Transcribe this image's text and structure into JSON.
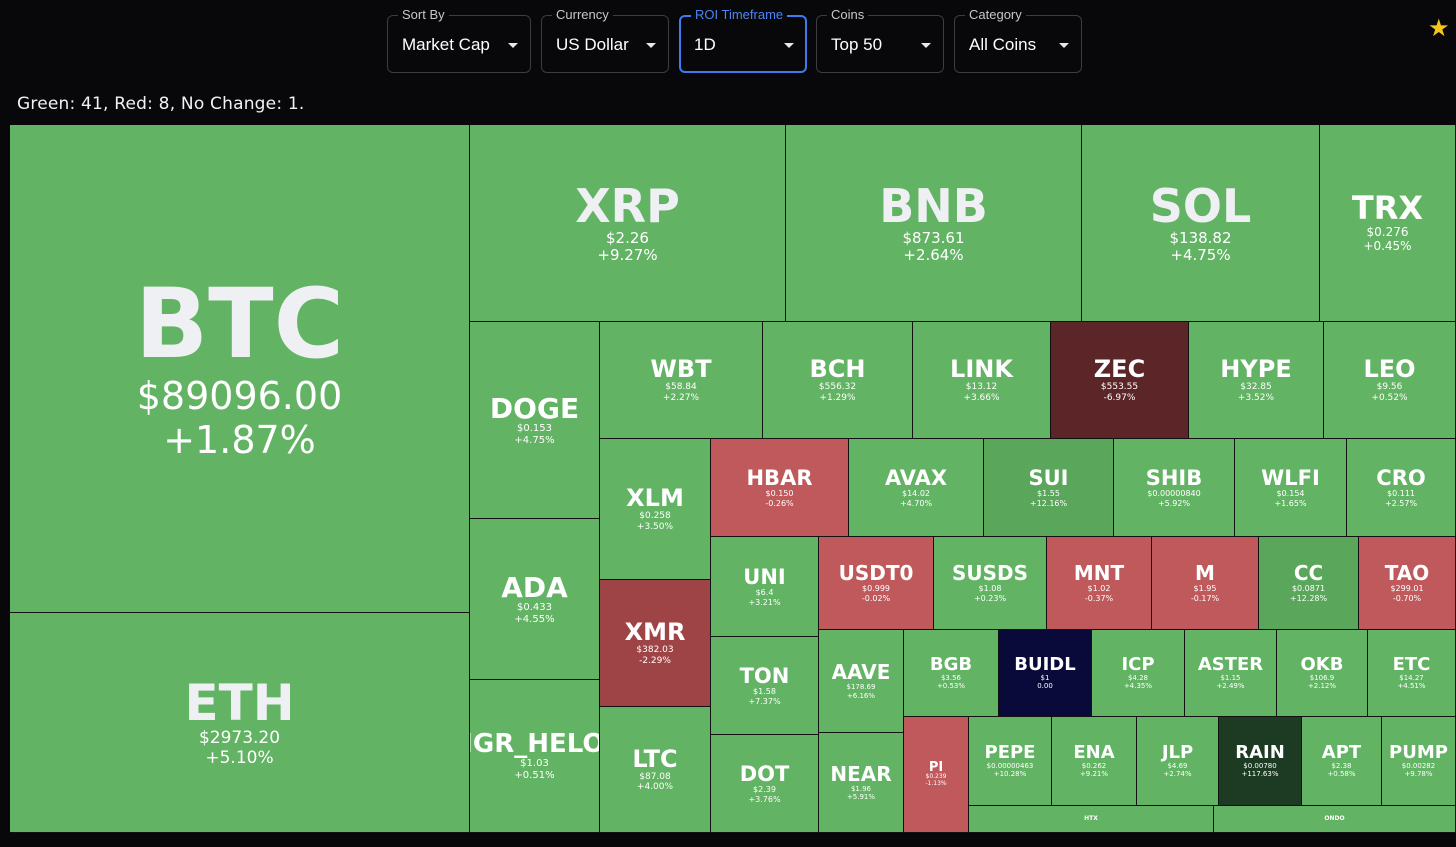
{
  "filters": {
    "sort_by": {
      "label": "Sort By",
      "value": "Market Cap"
    },
    "currency": {
      "label": "Currency",
      "value": "US Dollar"
    },
    "roi": {
      "label": "ROI Timeframe",
      "value": "1D"
    },
    "coins": {
      "label": "Coins",
      "value": "Top 50"
    },
    "category": {
      "label": "Category",
      "value": "All Coins"
    }
  },
  "favorite_icon": "star-icon",
  "summary": "Green: 41, Red: 8, No Change: 1.",
  "colors": {
    "green": "#63b364",
    "green_strong": "#5aa65b",
    "red": "#c0595b",
    "red_dark": "#9e4446",
    "maroon": "#5c2628",
    "navy": "#0a0a3a",
    "dark_green": "#1d3a22"
  },
  "tiles": [
    {
      "symbol": "BTC",
      "price": "$89096.00",
      "change": "+1.87%",
      "color": "green"
    },
    {
      "symbol": "ETH",
      "price": "$2973.20",
      "change": "+5.10%",
      "color": "green"
    },
    {
      "symbol": "XRP",
      "price": "$2.26",
      "change": "+9.27%",
      "color": "green"
    },
    {
      "symbol": "BNB",
      "price": "$873.61",
      "change": "+2.64%",
      "color": "green"
    },
    {
      "symbol": "SOL",
      "price": "$138.82",
      "change": "+4.75%",
      "color": "green"
    },
    {
      "symbol": "TRX",
      "price": "$0.276",
      "change": "+0.45%",
      "color": "green"
    },
    {
      "symbol": "DOGE",
      "price": "$0.153",
      "change": "+4.75%",
      "color": "green"
    },
    {
      "symbol": "ADA",
      "price": "$0.433",
      "change": "+4.55%",
      "color": "green"
    },
    {
      "symbol": "FIGR_HELOC",
      "price": "$1.03",
      "change": "+0.51%",
      "color": "green"
    },
    {
      "symbol": "WBT",
      "price": "$58.84",
      "change": "+2.27%",
      "color": "green"
    },
    {
      "symbol": "BCH",
      "price": "$556.32",
      "change": "+1.29%",
      "color": "green"
    },
    {
      "symbol": "LINK",
      "price": "$13.12",
      "change": "+3.66%",
      "color": "green"
    },
    {
      "symbol": "ZEC",
      "price": "$553.55",
      "change": "-6.97%",
      "color": "maroon"
    },
    {
      "symbol": "HYPE",
      "price": "$32.85",
      "change": "+3.52%",
      "color": "green"
    },
    {
      "symbol": "LEO",
      "price": "$9.56",
      "change": "+0.52%",
      "color": "green"
    },
    {
      "symbol": "XLM",
      "price": "$0.258",
      "change": "+3.50%",
      "color": "green"
    },
    {
      "symbol": "HBAR",
      "price": "$0.150",
      "change": "-0.26%",
      "color": "red"
    },
    {
      "symbol": "AVAX",
      "price": "$14.02",
      "change": "+4.70%",
      "color": "green"
    },
    {
      "symbol": "SUI",
      "price": "$1.55",
      "change": "+12.16%",
      "color": "green_strong"
    },
    {
      "symbol": "SHIB",
      "price": "$0.00000840",
      "change": "+5.92%",
      "color": "green"
    },
    {
      "symbol": "WLFI",
      "price": "$0.154",
      "change": "+1.65%",
      "color": "green"
    },
    {
      "symbol": "CRO",
      "price": "$0.111",
      "change": "+2.57%",
      "color": "green"
    },
    {
      "symbol": "XMR",
      "price": "$382.03",
      "change": "-2.29%",
      "color": "red_dark"
    },
    {
      "symbol": "UNI",
      "price": "$6.4",
      "change": "+3.21%",
      "color": "green"
    },
    {
      "symbol": "USDT0",
      "price": "$0.999",
      "change": "-0.02%",
      "color": "red"
    },
    {
      "symbol": "SUSDS",
      "price": "$1.08",
      "change": "+0.23%",
      "color": "green"
    },
    {
      "symbol": "MNT",
      "price": "$1.02",
      "change": "-0.37%",
      "color": "red"
    },
    {
      "symbol": "M",
      "price": "$1.95",
      "change": "-0.17%",
      "color": "red"
    },
    {
      "symbol": "CC",
      "price": "$0.0871",
      "change": "+12.28%",
      "color": "green_strong"
    },
    {
      "symbol": "TAO",
      "price": "$299.01",
      "change": "-0.70%",
      "color": "red"
    },
    {
      "symbol": "TON",
      "price": "$1.58",
      "change": "+7.37%",
      "color": "green"
    },
    {
      "symbol": "AAVE",
      "price": "$178.69",
      "change": "+6.16%",
      "color": "green"
    },
    {
      "symbol": "BGB",
      "price": "$3.56",
      "change": "+0.53%",
      "color": "green"
    },
    {
      "symbol": "BUIDL",
      "price": "$1",
      "change": "0.00",
      "color": "navy"
    },
    {
      "symbol": "ICP",
      "price": "$4.28",
      "change": "+4.35%",
      "color": "green"
    },
    {
      "symbol": "ASTER",
      "price": "$1.15",
      "change": "+2.49%",
      "color": "green"
    },
    {
      "symbol": "OKB",
      "price": "$106.9",
      "change": "+2.12%",
      "color": "green"
    },
    {
      "symbol": "ETC",
      "price": "$14.27",
      "change": "+4.51%",
      "color": "green"
    },
    {
      "symbol": "LTC",
      "price": "$87.08",
      "change": "+4.00%",
      "color": "green"
    },
    {
      "symbol": "DOT",
      "price": "$2.39",
      "change": "+3.76%",
      "color": "green"
    },
    {
      "symbol": "NEAR",
      "price": "$1.96",
      "change": "+5.91%",
      "color": "green"
    },
    {
      "symbol": "PI",
      "price": "$0.239",
      "change": "-1.13%",
      "color": "red"
    },
    {
      "symbol": "PEPE",
      "price": "$0.00000463",
      "change": "+10.28%",
      "color": "green"
    },
    {
      "symbol": "ENA",
      "price": "$0.262",
      "change": "+9.21%",
      "color": "green"
    },
    {
      "symbol": "JLP",
      "price": "$4.69",
      "change": "+2.74%",
      "color": "green"
    },
    {
      "symbol": "RAIN",
      "price": "$0.00780",
      "change": "+117.63%",
      "color": "dark_green"
    },
    {
      "symbol": "APT",
      "price": "$2.38",
      "change": "+0.58%",
      "color": "green"
    },
    {
      "symbol": "PUMP",
      "price": "$0.00282",
      "change": "+9.78%",
      "color": "green"
    },
    {
      "symbol": "HTX",
      "price": "",
      "change": "",
      "color": "green"
    },
    {
      "symbol": "ONDO",
      "price": "",
      "change": "",
      "color": "green"
    }
  ]
}
